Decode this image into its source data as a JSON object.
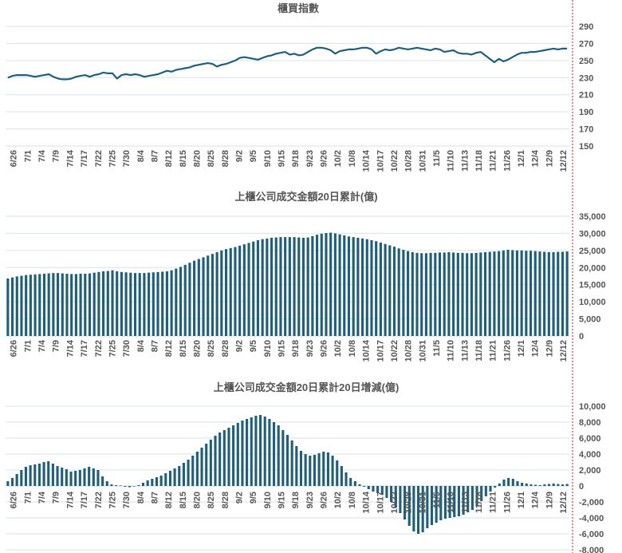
{
  "colors": {
    "series": "#1f5f7a",
    "grid": "#d6e6e6",
    "text": "#555555",
    "marker": "#e03a3a"
  },
  "x_labels": [
    "6/26",
    "7/1",
    "7/4",
    "7/9",
    "7/14",
    "7/17",
    "7/22",
    "7/25",
    "7/30",
    "8/4",
    "8/7",
    "8/12",
    "8/15",
    "8/20",
    "8/25",
    "8/28",
    "9/2",
    "9/5",
    "9/10",
    "9/15",
    "9/18",
    "9/23",
    "9/26",
    "10/2",
    "10/8",
    "10/14",
    "10/17",
    "10/22",
    "10/28",
    "10/31",
    "11/5",
    "11/10",
    "11/13",
    "11/18",
    "11/21",
    "11/26",
    "12/1",
    "12/4",
    "12/9",
    "12/12"
  ],
  "chart_data": [
    {
      "id": "index",
      "type": "line",
      "title": "櫃買指數",
      "ylim": [
        150,
        290
      ],
      "yticks": [
        150,
        170,
        190,
        210,
        230,
        250,
        270,
        290
      ],
      "categories_ref": "x_labels",
      "values": [
        230,
        232,
        233,
        233,
        233,
        232,
        231,
        232,
        233,
        234,
        231,
        229,
        228,
        228,
        229,
        231,
        232,
        233,
        231,
        233,
        234,
        236,
        235,
        235,
        229,
        233,
        234,
        233,
        234,
        233,
        231,
        232,
        233,
        234,
        236,
        238,
        237,
        239,
        240,
        241,
        242,
        244,
        245,
        246,
        247,
        246,
        243,
        245,
        246,
        248,
        250,
        253,
        254,
        253,
        252,
        251,
        253,
        255,
        256,
        258,
        259,
        260,
        257,
        258,
        256,
        257,
        260,
        263,
        265,
        265,
        264,
        262,
        258,
        261,
        262,
        263,
        263,
        264,
        265,
        265,
        263,
        258,
        261,
        263,
        262,
        263,
        265,
        264,
        263,
        264,
        265,
        264,
        263,
        262,
        264,
        263,
        260,
        261,
        262,
        259,
        258,
        258,
        257,
        259,
        260,
        256,
        252,
        248,
        252,
        249,
        251,
        254,
        257,
        259,
        259,
        260,
        260,
        261,
        262,
        263,
        264,
        263,
        264,
        264
      ]
    },
    {
      "id": "volume",
      "type": "bar",
      "title": "上櫃公司成交金額20日累計(億)",
      "ylim": [
        0,
        35000
      ],
      "yticks": [
        0,
        5000,
        10000,
        15000,
        20000,
        25000,
        30000,
        35000
      ],
      "categories_ref": "x_labels",
      "values": [
        16800,
        17100,
        17400,
        17600,
        17800,
        17900,
        18000,
        18100,
        18200,
        18300,
        18400,
        18400,
        18300,
        18200,
        18100,
        18100,
        18200,
        18200,
        18300,
        18500,
        18700,
        18900,
        19000,
        19200,
        18900,
        18700,
        18600,
        18500,
        18400,
        18400,
        18400,
        18500,
        18600,
        18700,
        18800,
        18900,
        19200,
        19700,
        20200,
        20800,
        21400,
        22000,
        22500,
        23000,
        23500,
        24000,
        24500,
        25000,
        25400,
        25700,
        26000,
        26400,
        26800,
        27200,
        27600,
        28000,
        28300,
        28500,
        28700,
        28800,
        28900,
        28900,
        28900,
        28900,
        28800,
        28700,
        28800,
        29200,
        29600,
        29900,
        30100,
        30200,
        30000,
        29700,
        29400,
        29100,
        28900,
        28700,
        28500,
        28300,
        28000,
        27700,
        27300,
        26900,
        26500,
        26100,
        25600,
        25200,
        24800,
        24500,
        24300,
        24200,
        24200,
        24300,
        24300,
        24400,
        24400,
        24500,
        24400,
        24300,
        24300,
        24200,
        24200,
        24300,
        24400,
        24500,
        24600,
        24700,
        24800,
        25000,
        25200,
        25100,
        25000,
        25000,
        24900,
        24900,
        24800,
        24700,
        24600,
        24500,
        24500,
        24600,
        24600,
        24700
      ]
    },
    {
      "id": "change",
      "type": "bar",
      "title": "上櫃公司成交金額20日累計20日增減(億)",
      "ylim": [
        -8000,
        10000
      ],
      "yticks": [
        -8000,
        -6000,
        -4000,
        -2000,
        0,
        2000,
        4000,
        6000,
        8000,
        10000
      ],
      "categories_ref": "x_labels",
      "values": [
        600,
        1000,
        1500,
        2000,
        2400,
        2600,
        2700,
        2800,
        3000,
        3100,
        2800,
        2500,
        2300,
        2100,
        1800,
        1900,
        2000,
        2200,
        2400,
        2200,
        2000,
        1200,
        600,
        200,
        100,
        50,
        -100,
        -150,
        -50,
        100,
        400,
        700,
        900,
        1100,
        1300,
        1600,
        1900,
        2200,
        2500,
        2900,
        3300,
        3800,
        4300,
        4800,
        5300,
        5800,
        6300,
        6700,
        7000,
        7300,
        7600,
        7900,
        8200,
        8400,
        8600,
        8800,
        8900,
        8700,
        8400,
        8000,
        7600,
        7000,
        6400,
        5700,
        5000,
        4400,
        4000,
        3800,
        3900,
        4100,
        4300,
        4200,
        3800,
        3200,
        2500,
        1700,
        1000,
        600,
        200,
        -100,
        -400,
        -700,
        -900,
        -1100,
        -1500,
        -2000,
        -2700,
        -3400,
        -4200,
        -5000,
        -5700,
        -6000,
        -5800,
        -5300,
        -4900,
        -4600,
        -4300,
        -4100,
        -4000,
        -3900,
        -3800,
        -3600,
        -3300,
        -3000,
        -2500,
        -1900,
        -1300,
        -700,
        -200,
        300,
        800,
        1000,
        900,
        600,
        400,
        300,
        200,
        150,
        100,
        200,
        250,
        300,
        250,
        200,
        250
      ]
    }
  ]
}
